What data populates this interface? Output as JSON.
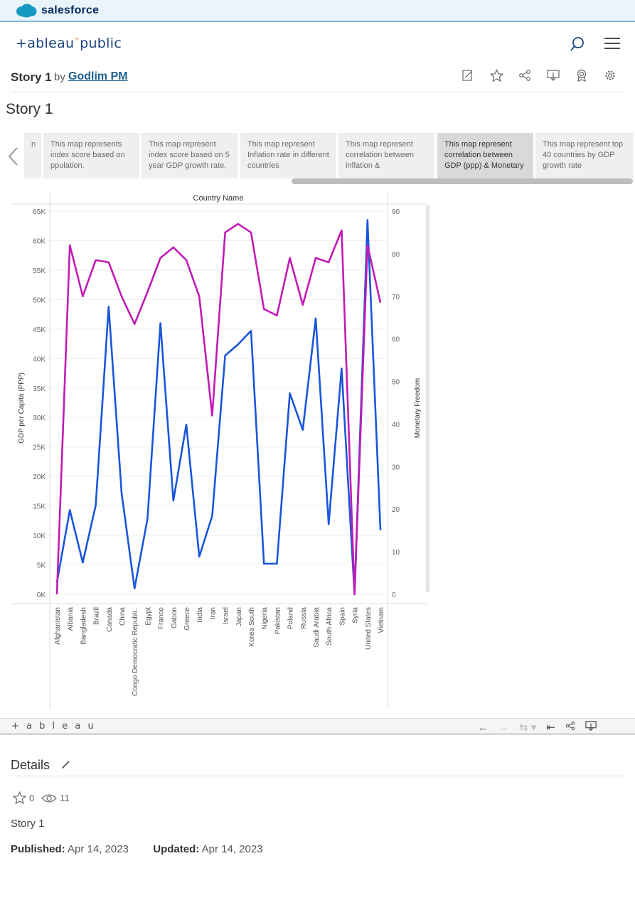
{
  "topbar": {
    "brand": "salesforce"
  },
  "header": {
    "logo": "+ableau+public"
  },
  "story": {
    "title": "Story 1",
    "by": "by",
    "author": "Godlim PM",
    "heading": "Story 1"
  },
  "toolbar": {
    "icons": [
      "edit-icon",
      "star-icon",
      "share-icon",
      "download-icon",
      "badge-icon",
      "settings-icon"
    ]
  },
  "captions": [
    {
      "text": "n",
      "active": false
    },
    {
      "text": "This map represents index score based on ppulation.",
      "active": false
    },
    {
      "text": "This map represent index score based on 5 year GDP growth rate.",
      "active": false
    },
    {
      "text": "This map represent Inflation rate in different countries",
      "active": false
    },
    {
      "text": "This map represent correlation between inflation &",
      "active": false
    },
    {
      "text": "This map represent correlation between GDP (ppp) & Monetary",
      "active": true
    },
    {
      "text": "This map represent top 40 countries by GDP growth rate",
      "active": false
    }
  ],
  "chart_data": {
    "type": "line",
    "title": "Country Name",
    "ylabel": "GDP per Capita (PPP)",
    "y2label": "Monetary Freedom",
    "ylim": [
      0,
      65000
    ],
    "y2lim": [
      0,
      90
    ],
    "yticks": [
      "0K",
      "5K",
      "10K",
      "15K",
      "20K",
      "25K",
      "30K",
      "35K",
      "40K",
      "45K",
      "50K",
      "55K",
      "60K",
      "65K"
    ],
    "y2ticks": [
      "0",
      "10",
      "20",
      "30",
      "40",
      "50",
      "60",
      "70",
      "80",
      "90"
    ],
    "categories": [
      "Afghanistan",
      "Albania",
      "Bangladesh",
      "Brazil",
      "Canada",
      "China",
      "Congo Democratic Republi..",
      "Egypt",
      "France",
      "Gabon",
      "Greece",
      "India",
      "Iran",
      "Israel",
      "Japan",
      "Korea South",
      "Nigeria",
      "Pakistan",
      "Poland",
      "Russia",
      "Saudi Arabia",
      "South Africa",
      "Spain",
      "Syria",
      "United States",
      "Vietnam"
    ],
    "series": [
      {
        "color": "#1a56db",
        "axis": "left",
        "values": [
          2000,
          14300,
          5400,
          15100,
          48800,
          17200,
          1000,
          12800,
          46000,
          15900,
          28800,
          6400,
          13300,
          40500,
          42400,
          44700,
          5200,
          5200,
          34100,
          27900,
          46800,
          11900,
          38300,
          0,
          63500,
          10900
        ]
      },
      {
        "color": "#c21bb4",
        "axis": "right",
        "values": [
          0,
          82,
          70,
          78.5,
          78,
          70,
          63.5,
          71,
          79,
          81.5,
          78.5,
          70,
          42,
          85,
          87,
          85,
          67,
          65.5,
          79,
          68,
          79,
          78,
          85.5,
          0,
          82,
          68.5
        ]
      }
    ],
    "grid": true
  },
  "viz_footer": {
    "logo": "+ a b l e a u"
  },
  "details": {
    "title": "Details",
    "favorites": "0",
    "views": "11",
    "story_name": "Story 1",
    "published_label": "Published:",
    "published": "Apr 14, 2023",
    "updated_label": "Updated:",
    "updated": "Apr 14, 2023"
  }
}
